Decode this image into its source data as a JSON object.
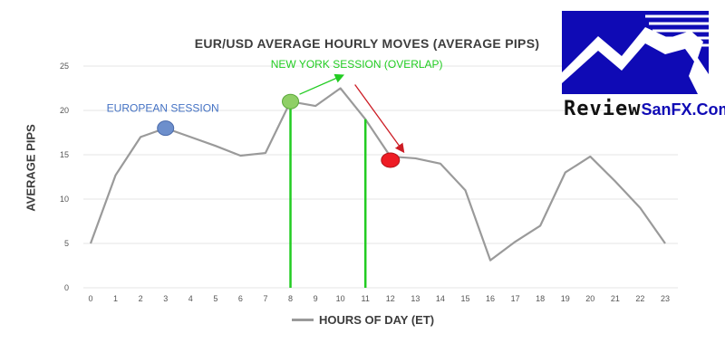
{
  "chart_data": {
    "type": "line",
    "title": "EUR/USD AVERAGE HOURLY MOVES (AVERAGE PIPS)",
    "xlabel": "",
    "ylabel": "AVERAGE PIPS",
    "x": [
      0,
      1,
      2,
      3,
      4,
      5,
      6,
      7,
      8,
      9,
      10,
      11,
      12,
      13,
      14,
      15,
      16,
      17,
      18,
      19,
      20,
      21,
      22,
      23
    ],
    "series": [
      {
        "name": "HOURS OF DAY (ET)",
        "color": "#9a9a9a",
        "values": [
          5,
          12.7,
          17,
          18,
          17,
          16,
          14.9,
          15.2,
          21,
          20.5,
          22.5,
          19,
          14.8,
          14.6,
          14,
          11,
          3.1,
          5.2,
          7,
          13,
          14.8,
          12,
          9,
          5
        ]
      }
    ],
    "xlim": [
      0,
      23
    ],
    "ylim": [
      0,
      25
    ],
    "yticks": [
      0,
      5,
      10,
      15,
      20,
      25
    ],
    "grid": true,
    "legend": "bottom",
    "annotations": {
      "european_session": {
        "text": "EUROPEAN SESSION",
        "hour": 3,
        "color": "#4472c4"
      },
      "new_york_session": {
        "text": "NEW YORK SESSION (OVERLAP)",
        "color": "#22cc22"
      },
      "session_start_hour": 8,
      "session_end_hour": 11,
      "peak_hour": 10,
      "session_marker_hour": 8,
      "drop_marker_hour": 12,
      "green_color": "#22cc22",
      "red_color": "#ee1c24"
    }
  },
  "logo": {
    "word1": "Review",
    "word2": "SanFX.Com",
    "colors": {
      "primary": "#0f0ab5",
      "secondary": "#111111"
    }
  }
}
